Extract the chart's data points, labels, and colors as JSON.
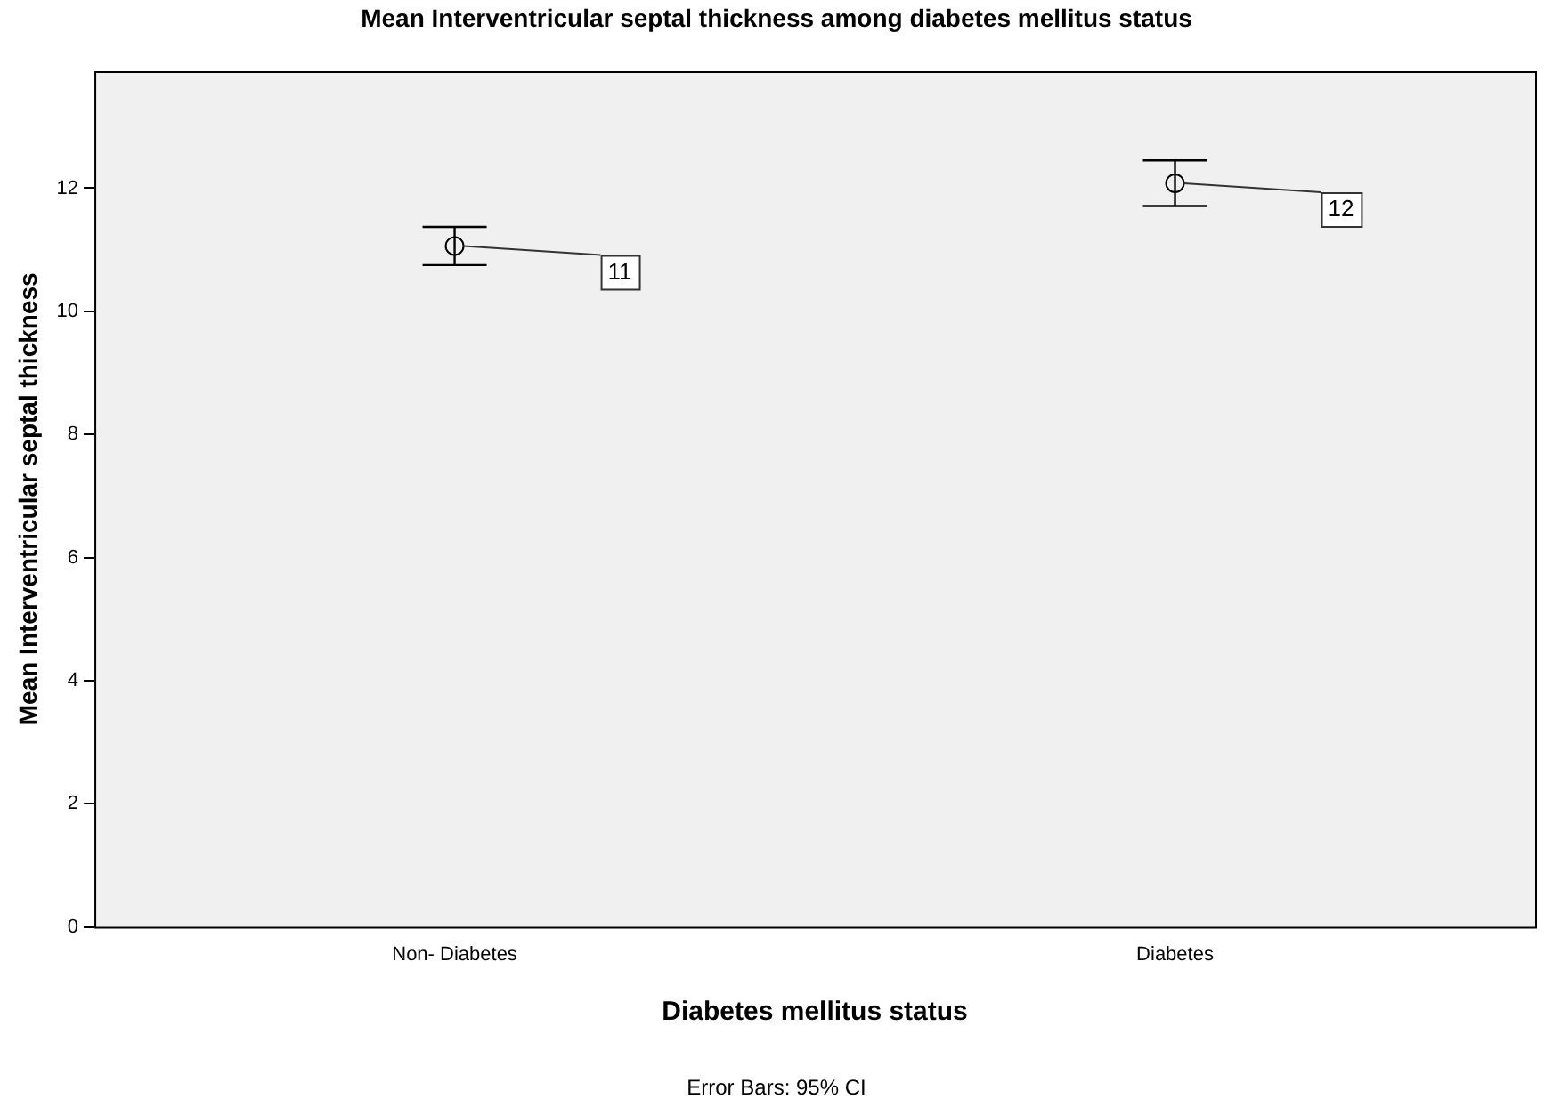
{
  "chart_data": {
    "type": "scatter",
    "title": "Mean Interventricular septal thickness among diabetes mellitus status",
    "xlabel": "Diabetes mellitus status",
    "ylabel": "Mean Interventricular septal thickness",
    "annotations": [
      "Error Bars: 95% CI"
    ],
    "categories": [
      "Non- Diabetes",
      "Diabetes"
    ],
    "values": [
      11.06,
      12.08
    ],
    "errors": [
      [
        10.75,
        11.37
      ],
      [
        11.71,
        12.45
      ]
    ],
    "value_labels": [
      "11",
      "12"
    ],
    "color": "#000000",
    "ylim": [
      0,
      13.9
    ],
    "yticks": [
      0,
      2,
      4,
      6,
      8,
      10,
      12
    ],
    "grid": false,
    "legend": false,
    "marker": "circle"
  }
}
